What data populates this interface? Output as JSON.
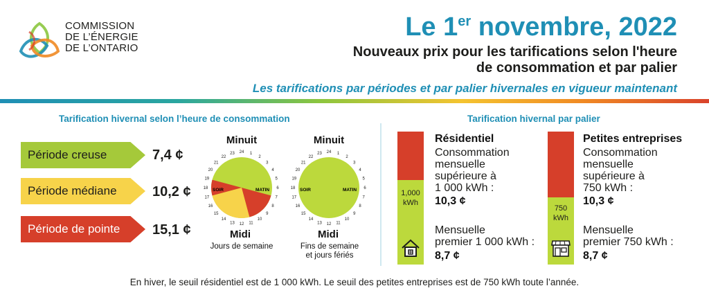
{
  "header": {
    "org_lines": [
      "COMMISSION",
      "DE L’ÉNERGIE",
      "DE L’ONTARIO"
    ],
    "date_prefix": "Le 1",
    "date_sup": "er",
    "date_suffix": " novembre, 2022",
    "subtitle_line1": "Nouveaux prix pour les tarifications selon l'heure",
    "subtitle_line2": "de consommation et par palier",
    "tagline": "Les tarifications par périodes et par palier hivernales en vigueur maintenant"
  },
  "tou": {
    "title": "Tarification hivernal selon l’heure de consommation",
    "periods": [
      {
        "label": "Période creuse",
        "price": "7,4 ¢",
        "color": "#a5c93a"
      },
      {
        "label": "Période médiane",
        "price": "10,2 ¢",
        "color": "#f7d34a"
      },
      {
        "label": "Période de pointe",
        "price": "15,1 ¢",
        "color": "#d63f2a"
      }
    ],
    "weekday_clock": {
      "top": "Minuit",
      "bottom": "Midi",
      "caption": "Jours de semaine",
      "left_label": "SOIR",
      "right_label": "MATIN",
      "hours": [
        "24",
        "1",
        "2",
        "3",
        "4",
        "5",
        "6",
        "7",
        "8",
        "9",
        "10",
        "11",
        "12",
        "13",
        "14",
        "15",
        "16",
        "17",
        "18",
        "19",
        "20",
        "21",
        "22",
        "23"
      ]
    },
    "weekend_clock": {
      "top": "Minuit",
      "bottom": "Midi",
      "caption_line1": "Fins de semaine",
      "caption_line2": "et jours fériés",
      "left_label": "SOIR",
      "right_label": "MATIN",
      "hours": [
        "24",
        "1",
        "2",
        "3",
        "4",
        "5",
        "6",
        "7",
        "8",
        "9",
        "10",
        "11",
        "12",
        "13",
        "14",
        "15",
        "16",
        "17",
        "18",
        "19",
        "20",
        "21",
        "22",
        "23"
      ]
    }
  },
  "tiered": {
    "title": "Tarification hivernal par palier",
    "residential": {
      "heading": "Résidentiel",
      "threshold_line1": "1,000",
      "threshold_line2": "kWh",
      "upper_lines": [
        "Consommation",
        "mensuelle",
        "supérieure à",
        "1 000 kWh :"
      ],
      "upper_price": "10,3 ¢",
      "lower_lines": [
        "Mensuelle",
        "premier 1 000 kWh :"
      ],
      "lower_price": "8,7 ¢",
      "icon": "house-icon"
    },
    "business": {
      "heading": "Petites entreprises",
      "threshold_line1": "750",
      "threshold_line2": "kWh",
      "upper_lines": [
        "Consommation",
        "mensuelle",
        "supérieure à",
        "750 kWh :"
      ],
      "upper_price": "10,3 ¢",
      "lower_lines": [
        "Mensuelle",
        "premier 750 kWh :"
      ],
      "lower_price": "8,7 ¢",
      "icon": "storefront-icon"
    }
  },
  "footer": "En hiver, le seuil résidentiel est de 1 000 kWh. Le seuil des petites entreprises est de 750 kWh toute l’année.",
  "colors": {
    "brand_blue": "#1f8fb5",
    "off_peak": "#a5c93a",
    "mid_peak": "#f7d34a",
    "on_peak": "#d63f2a"
  }
}
